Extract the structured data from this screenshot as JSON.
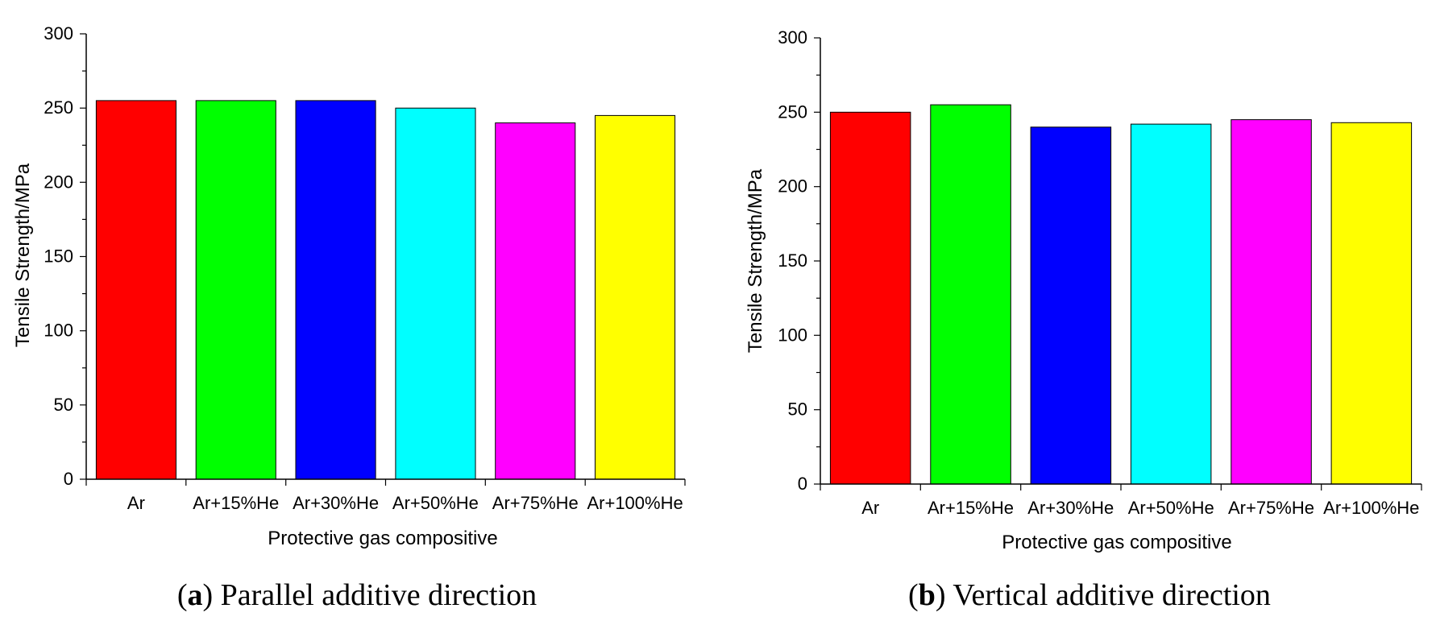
{
  "chart_data": [
    {
      "type": "bar",
      "panel": "a",
      "caption": {
        "label": "a",
        "text": "Parallel additive direction"
      },
      "categories": [
        "Ar",
        "Ar+15%He",
        "Ar+30%He",
        "Ar+50%He",
        "Ar+75%He",
        "Ar+100%He"
      ],
      "values": [
        255,
        255,
        255,
        250,
        240,
        245
      ],
      "colors": [
        "#ff0000",
        "#00ff00",
        "#0000ff",
        "#00ffff",
        "#ff00ff",
        "#ffff00"
      ],
      "xlabel": "Protective gas compositive",
      "ylabel": "Tensile Strength/MPa",
      "ylim": [
        0,
        300
      ],
      "yticks": [
        0,
        50,
        100,
        150,
        200,
        250,
        300
      ],
      "grid": false,
      "legend": "none"
    },
    {
      "type": "bar",
      "panel": "b",
      "caption": {
        "label": "b",
        "text": "Vertical additive direction"
      },
      "categories": [
        "Ar",
        "Ar+15%He",
        "Ar+30%He",
        "Ar+50%He",
        "Ar+75%He",
        "Ar+100%He"
      ],
      "values": [
        250,
        255,
        240,
        242,
        245,
        243
      ],
      "colors": [
        "#ff0000",
        "#00ff00",
        "#0000ff",
        "#00ffff",
        "#ff00ff",
        "#ffff00"
      ],
      "xlabel": "Protective gas compositive",
      "ylabel": "Tensile Strength/MPa",
      "ylim": [
        0,
        300
      ],
      "yticks": [
        0,
        50,
        100,
        150,
        200,
        250,
        300
      ],
      "grid": false,
      "legend": "none"
    }
  ]
}
